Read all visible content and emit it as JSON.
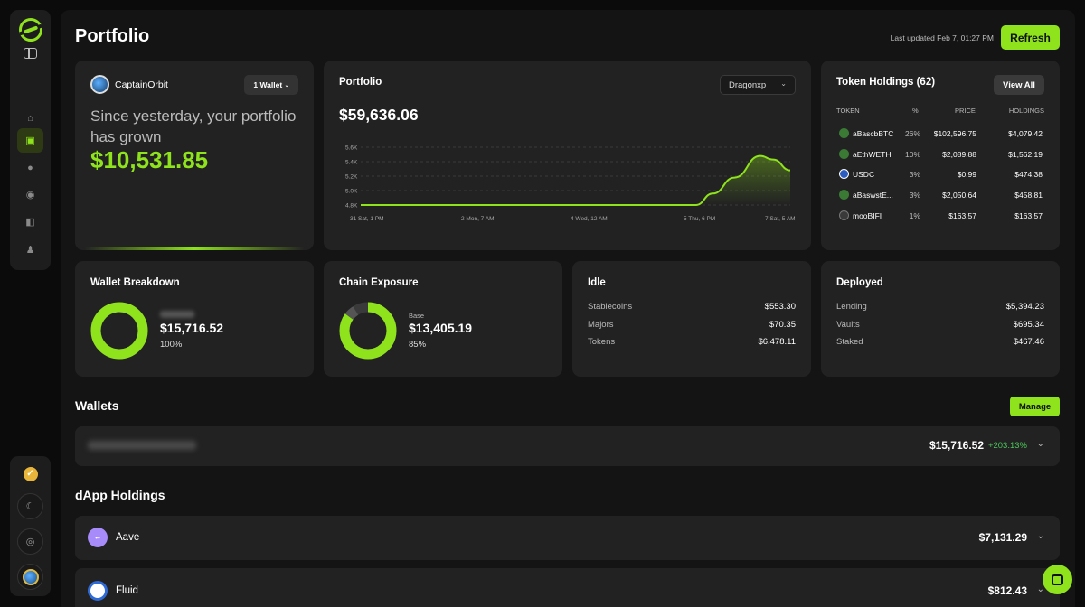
{
  "header": {
    "title": "Portfolio",
    "last_updated": "Last updated Feb 7, 01:27 PM",
    "refresh_label": "Refresh"
  },
  "summary": {
    "username": "CaptainOrbit",
    "wallet_selector": "1 Wallet",
    "growth_text": "Since yesterday, your portfolio has grown",
    "growth_amount": "$10,531.85"
  },
  "portfolio_chart": {
    "title": "Portfolio",
    "value": "$59,636.06",
    "selector": "Dragonxp"
  },
  "chart_data": {
    "type": "area",
    "title": "",
    "ylim": [
      4800,
      5600
    ],
    "yticks": [
      "5.6K",
      "5.4K",
      "5.2K",
      "5.0K",
      "4.8K"
    ],
    "xticks": [
      "31 Sat, 1 PM",
      "2 Mon, 7 AM",
      "4 Wed, 12 AM",
      "5 Thu, 6 PM",
      "7 Sat, 5 AM"
    ],
    "x": [
      0,
      0.78,
      0.82,
      0.87,
      0.93,
      0.96,
      1.0
    ],
    "values": [
      4800,
      4800,
      4960,
      5180,
      5480,
      5430,
      5280
    ],
    "color": "#8fe31c"
  },
  "tokens": {
    "title": "Token Holdings (62)",
    "view_all": "View All",
    "headers": [
      "TOKEN",
      "%",
      "PRICE",
      "HOLDINGS"
    ],
    "rows": [
      {
        "name": "aBascbBTC",
        "pct": "26%",
        "price": "$102,596.75",
        "holdings": "$4,079.42",
        "icon": "abtc-icon"
      },
      {
        "name": "aEthWETH",
        "pct": "10%",
        "price": "$2,089.88",
        "holdings": "$1,562.19",
        "icon": "aweth-icon"
      },
      {
        "name": "USDC",
        "pct": "3%",
        "price": "$0.99",
        "holdings": "$474.38",
        "icon": "usdc-icon"
      },
      {
        "name": "aBaswstE...",
        "pct": "3%",
        "price": "$2,050.64",
        "holdings": "$458.81",
        "icon": "awsteth-icon"
      },
      {
        "name": "mooBIFI",
        "pct": "1%",
        "price": "$163.57",
        "holdings": "$163.57",
        "icon": "moo-icon"
      }
    ]
  },
  "wallet_breakdown": {
    "title": "Wallet Breakdown",
    "value": "$15,716.52",
    "pct": "100%",
    "fraction": 1.0
  },
  "chain_exposure": {
    "title": "Chain Exposure",
    "label": "Base",
    "value": "$13,405.19",
    "pct": "85%",
    "fraction": 0.85
  },
  "idle": {
    "title": "Idle",
    "items": [
      {
        "label": "Stablecoins",
        "value": "$553.30"
      },
      {
        "label": "Majors",
        "value": "$70.35"
      },
      {
        "label": "Tokens",
        "value": "$6,478.11"
      }
    ]
  },
  "deployed": {
    "title": "Deployed",
    "items": [
      {
        "label": "Lending",
        "value": "$5,394.23"
      },
      {
        "label": "Vaults",
        "value": "$695.34"
      },
      {
        "label": "Staked",
        "value": "$467.46"
      }
    ]
  },
  "wallets": {
    "title": "Wallets",
    "manage": "Manage",
    "row": {
      "amount": "$15,716.52",
      "change": "+203.13%"
    }
  },
  "dapps": {
    "title": "dApp Holdings",
    "items": [
      {
        "name": "Aave",
        "amount": "$7,131.29"
      },
      {
        "name": "Fluid",
        "amount": "$812.43"
      }
    ]
  },
  "colors": {
    "accent": "#8fe31c",
    "positive": "#4cc55c",
    "card": "#222222",
    "background": "#141414"
  }
}
